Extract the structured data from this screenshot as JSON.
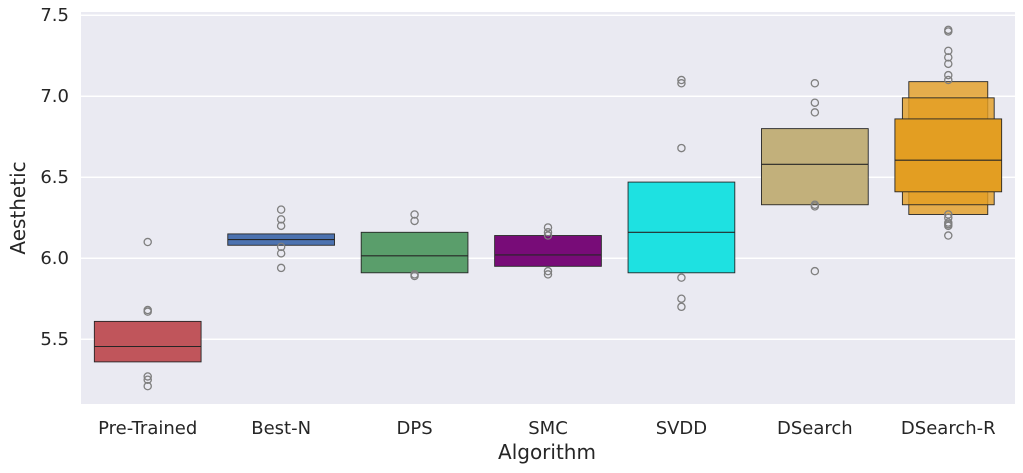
{
  "chart_data": {
    "type": "boxen",
    "title": "",
    "xlabel": "Algorithm",
    "ylabel": "Aesthetic",
    "ylim": [
      5.1,
      7.52
    ],
    "yticks": [
      5.5,
      6.0,
      6.5,
      7.0,
      7.5
    ],
    "ytick_labels": [
      "5.5",
      "6.0",
      "6.5",
      "7.0",
      "7.5"
    ],
    "grid": true,
    "categories": [
      "Pre-Trained",
      "Best-N",
      "DPS",
      "SMC",
      "SVDD",
      "DSearch",
      "DSearch-R"
    ],
    "series": [
      {
        "name": "Pre-Trained",
        "color": "#c0555b",
        "boxes": [
          [
            5.36,
            5.61
          ]
        ],
        "median": 5.455,
        "outliers": [
          6.1,
          5.68,
          5.67,
          5.27,
          5.25,
          5.21
        ]
      },
      {
        "name": "Best-N",
        "color": "#4c72b0",
        "boxes": [
          [
            6.08,
            6.15
          ]
        ],
        "median": 6.115,
        "outliers": [
          6.3,
          6.24,
          6.2,
          6.07,
          6.03,
          5.94
        ]
      },
      {
        "name": "DPS",
        "color": "#5a9e6b",
        "boxes": [
          [
            5.91,
            6.16
          ]
        ],
        "median": 6.015,
        "outliers": [
          6.27,
          6.23,
          5.9,
          5.89
        ]
      },
      {
        "name": "SMC",
        "color": "#780c78",
        "boxes": [
          [
            5.95,
            6.14
          ]
        ],
        "median": 6.02,
        "outliers": [
          6.19,
          6.16,
          6.14,
          5.92,
          5.9
        ]
      },
      {
        "name": "SVDD",
        "color": "#1ee1e1",
        "boxes": [
          [
            5.91,
            6.47
          ]
        ],
        "median": 6.16,
        "outliers": [
          7.1,
          7.08,
          6.68,
          5.88,
          5.75,
          5.7
        ]
      },
      {
        "name": "DSearch",
        "color": "#c2b07b",
        "boxes": [
          [
            6.33,
            6.8
          ]
        ],
        "median": 6.58,
        "outliers": [
          7.08,
          6.96,
          6.9,
          6.33,
          6.32,
          5.92
        ]
      },
      {
        "name": "DSearch-R",
        "color": "#e39e22",
        "boxes": [
          [
            6.41,
            6.86
          ],
          [
            6.33,
            6.99
          ],
          [
            6.27,
            7.09
          ]
        ],
        "median": 6.605,
        "outliers": [
          7.41,
          7.4,
          7.28,
          7.24,
          7.2,
          7.13,
          7.1,
          6.27,
          6.25,
          6.22,
          6.21,
          6.2,
          6.14
        ]
      }
    ]
  }
}
